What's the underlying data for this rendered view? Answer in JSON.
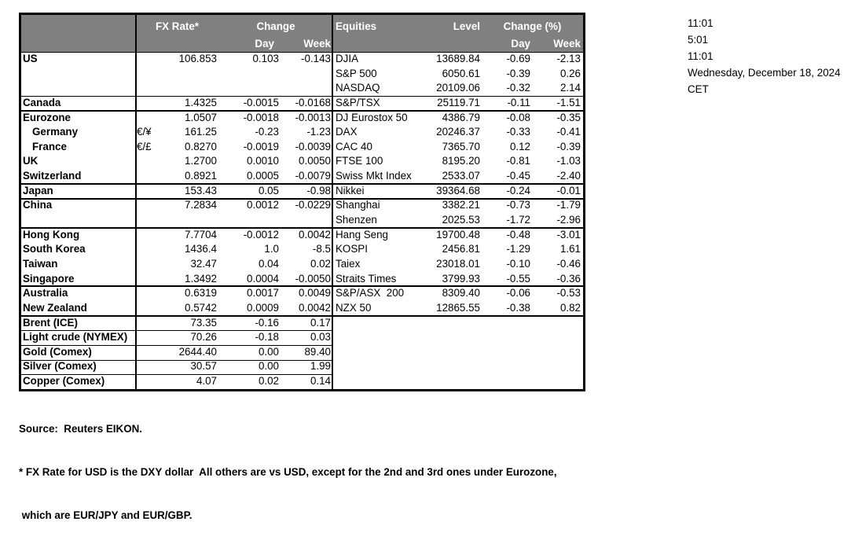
{
  "colors": {
    "header_bg": "#808080",
    "header_text": "#ffffff",
    "border": "#000000",
    "text": "#000000",
    "background": "#ffffff"
  },
  "clock": [
    "11:01",
    "5:01",
    "11:01",
    "Wednesday, December 18, 2024",
    "CET"
  ],
  "fx_table": {
    "header": {
      "rate_label": "FX Rate*",
      "change_label": "Change",
      "day_label": "Day",
      "week_label": "Week"
    },
    "rows": [
      {
        "label": "US",
        "sym": "",
        "rate": "106.853",
        "day": "0.103",
        "week": "-0.143"
      },
      {
        "label": "",
        "sym": "",
        "rate": "",
        "day": "",
        "week": ""
      },
      {
        "label": "",
        "sym": "",
        "rate": "",
        "day": "",
        "week": ""
      },
      {
        "label": "Canada",
        "sym": "",
        "rate": "1.4325",
        "day": "-0.0015",
        "week": "-0.0168"
      },
      {
        "label": "Eurozone",
        "sym": "",
        "rate": "1.0507",
        "day": "-0.0018",
        "week": "-0.0013"
      },
      {
        "label": "Germany",
        "sym": "€/¥",
        "rate": "161.25",
        "day": "-0.23",
        "week": "-1.23",
        "indent": true
      },
      {
        "label": "France",
        "sym": "€/£",
        "rate": "0.8270",
        "day": "-0.0019",
        "week": "-0.0039",
        "indent": true
      },
      {
        "label": "UK",
        "sym": "",
        "rate": "1.2700",
        "day": "0.0010",
        "week": "0.0050"
      },
      {
        "label": "Switzerland",
        "sym": "",
        "rate": "0.8921",
        "day": "0.0005",
        "week": "-0.0079"
      },
      {
        "label": "Japan",
        "sym": "",
        "rate": "153.43",
        "day": "0.05",
        "week": "-0.98"
      },
      {
        "label": "China",
        "sym": "",
        "rate": "7.2834",
        "day": "0.0012",
        "week": "-0.0229"
      },
      {
        "label": "",
        "sym": "",
        "rate": "",
        "day": "",
        "week": ""
      },
      {
        "label": "Hong Kong",
        "sym": "",
        "rate": "7.7704",
        "day": "-0.0012",
        "week": "0.0042"
      },
      {
        "label": "South Korea",
        "sym": "",
        "rate": "1436.4",
        "day": "1.0",
        "week": "-8.5"
      },
      {
        "label": "Taiwan",
        "sym": "",
        "rate": "32.47",
        "day": "0.04",
        "week": "0.02"
      },
      {
        "label": "Singapore",
        "sym": "",
        "rate": "1.3492",
        "day": "0.0004",
        "week": "-0.0050"
      },
      {
        "label": "Australia",
        "sym": "",
        "rate": "0.6319",
        "day": "0.0017",
        "week": "0.0049"
      },
      {
        "label": "New Zealand",
        "sym": "",
        "rate": "0.5742",
        "day": "0.0009",
        "week": "0.0042"
      },
      {
        "label": "Brent (ICE)",
        "sym": "",
        "rate": "73.35",
        "day": "-0.16",
        "week": "0.17"
      },
      {
        "label": "Light crude (NYMEX)",
        "sym": "",
        "rate": "70.26",
        "day": "-0.18",
        "week": "0.03"
      },
      {
        "label": "Gold (Comex)",
        "sym": "",
        "rate": "2644.40",
        "day": "0.00",
        "week": "89.40"
      },
      {
        "label": "Silver (Comex)",
        "sym": "",
        "rate": "30.57",
        "day": "0.00",
        "week": "1.99"
      },
      {
        "label": "Copper (Comex)",
        "sym": "",
        "rate": "4.07",
        "day": "0.02",
        "week": "0.14"
      }
    ]
  },
  "equities_table": {
    "header": {
      "equities_label": "Equities",
      "level_label": "Level",
      "change_label": "Change (%)",
      "day_label": "Day",
      "week_label": "Week"
    },
    "rows": [
      {
        "label": "DJIA",
        "level": "13689.84",
        "day": "-0.69",
        "week": "-2.13"
      },
      {
        "label": "S&P 500",
        "level": "6050.61",
        "day": "-0.39",
        "week": "0.26"
      },
      {
        "label": "NASDAQ",
        "level": "20109.06",
        "day": "-0.32",
        "week": "2.14"
      },
      {
        "label": "S&P/TSX",
        "level": "25119.71",
        "day": "-0.11",
        "week": "-1.51"
      },
      {
        "label": "DJ Eurostox 50",
        "level": "4386.79",
        "day": "-0.08",
        "week": "-0.35"
      },
      {
        "label": "DAX",
        "level": "20246.37",
        "day": "-0.33",
        "week": "-0.41"
      },
      {
        "label": "CAC 40",
        "level": "7365.70",
        "day": "0.12",
        "week": "-0.39"
      },
      {
        "label": "FTSE 100",
        "level": "8195.20",
        "day": "-0.81",
        "week": "-1.03"
      },
      {
        "label": "Swiss Mkt Index",
        "level": "2533.07",
        "day": "-0.45",
        "week": "-2.40"
      },
      {
        "label": "Nikkei",
        "level": "39364.68",
        "day": "-0.24",
        "week": "-0.01"
      },
      {
        "label": "Shanghai",
        "level": "3382.21",
        "day": "-0.73",
        "week": "-1.79"
      },
      {
        "label": "Shenzen",
        "level": "2025.53",
        "day": "-1.72",
        "week": "-2.96"
      },
      {
        "label": "Hang Seng",
        "level": "19700.48",
        "day": "-0.48",
        "week": "-3.01"
      },
      {
        "label": "KOSPI",
        "level": "2456.81",
        "day": "-1.29",
        "week": "1.61"
      },
      {
        "label": "Taiex",
        "level": "23018.01",
        "day": "-0.10",
        "week": "-0.46"
      },
      {
        "label": "Straits Times",
        "level": "3799.93",
        "day": "-0.55",
        "week": "-0.36"
      },
      {
        "label": "S&P/ASX  200",
        "level": "8309.40",
        "day": "-0.06",
        "week": "-0.53"
      },
      {
        "label": "NZX 50",
        "level": "12865.55",
        "day": "-0.38",
        "week": "0.82"
      }
    ]
  },
  "footnotes": {
    "source": "Source:  Reuters EIKON.",
    "note1": "* FX Rate for USD is the DXY dollar  All others are vs USD, except for the 2nd and 3rd ones under Eurozone,",
    "note2": " which are EUR/JPY and EUR/GBP."
  }
}
